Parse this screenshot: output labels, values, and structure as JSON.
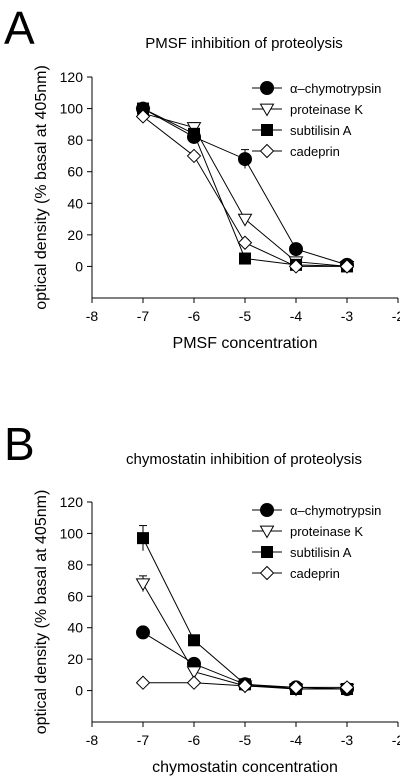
{
  "chart_data": [
    {
      "type": "line",
      "panel_letter": "A",
      "title": "PMSF inhibition of proteolysis",
      "xlabel": "PMSF concentration",
      "ylabel": "optical density (% basal at 405nm)",
      "xlim": [
        -8,
        -2
      ],
      "ylim": [
        -20,
        120
      ],
      "xticks": [
        -8,
        -7,
        -6,
        -5,
        -4,
        -3,
        -2
      ],
      "yticks": [
        0,
        20,
        40,
        60,
        80,
        100,
        120
      ],
      "legend_position": "top-right",
      "x": [
        -7,
        -6,
        -5,
        -4,
        -3
      ],
      "series": [
        {
          "name": "α–chymotrypsin",
          "marker": "filled-circle",
          "values": [
            100,
            82,
            68,
            11,
            1
          ],
          "errors": [
            2,
            4,
            6,
            1,
            1
          ]
        },
        {
          "name": "proteinase K",
          "marker": "open-triangle-down",
          "values": [
            97,
            88,
            30,
            3,
            0
          ],
          "errors": [
            2,
            3,
            2,
            1,
            1
          ]
        },
        {
          "name": "subtilisin A",
          "marker": "filled-square",
          "values": [
            100,
            84,
            5,
            1,
            0
          ],
          "errors": [
            1,
            3,
            1,
            1,
            1
          ]
        },
        {
          "name": "cadeprin",
          "marker": "open-diamond",
          "values": [
            95,
            70,
            15,
            0,
            0
          ],
          "errors": [
            3,
            2,
            2,
            1,
            1
          ]
        }
      ]
    },
    {
      "type": "line",
      "panel_letter": "B",
      "title": "chymostatin inhibition of proteolysis",
      "xlabel": "chymostatin concentration",
      "ylabel": "optical density (% basal at 405nm)",
      "xlim": [
        -8,
        -2
      ],
      "ylim": [
        -20,
        120
      ],
      "xticks": [
        -8,
        -7,
        -6,
        -5,
        -4,
        -3,
        -2
      ],
      "yticks": [
        0,
        20,
        40,
        60,
        80,
        100,
        120
      ],
      "legend_position": "top-right",
      "x": [
        -7,
        -6,
        -5,
        -4,
        -3
      ],
      "series": [
        {
          "name": "α–chymotrypsin",
          "marker": "filled-circle",
          "values": [
            37,
            17,
            4,
            2,
            1
          ],
          "errors": [
            2,
            2,
            1,
            1,
            1
          ]
        },
        {
          "name": "proteinase K",
          "marker": "open-triangle-down",
          "values": [
            68,
            12,
            3,
            1,
            1
          ],
          "errors": [
            5,
            2,
            1,
            1,
            1
          ]
        },
        {
          "name": "subtilisin A",
          "marker": "filled-square",
          "values": [
            97,
            32,
            4,
            1,
            1
          ],
          "errors": [
            8,
            2,
            1,
            1,
            1
          ]
        },
        {
          "name": "cadeprin",
          "marker": "open-diamond",
          "values": [
            5,
            5,
            3,
            2,
            2
          ],
          "errors": [
            1,
            1,
            1,
            1,
            1
          ]
        }
      ]
    }
  ]
}
